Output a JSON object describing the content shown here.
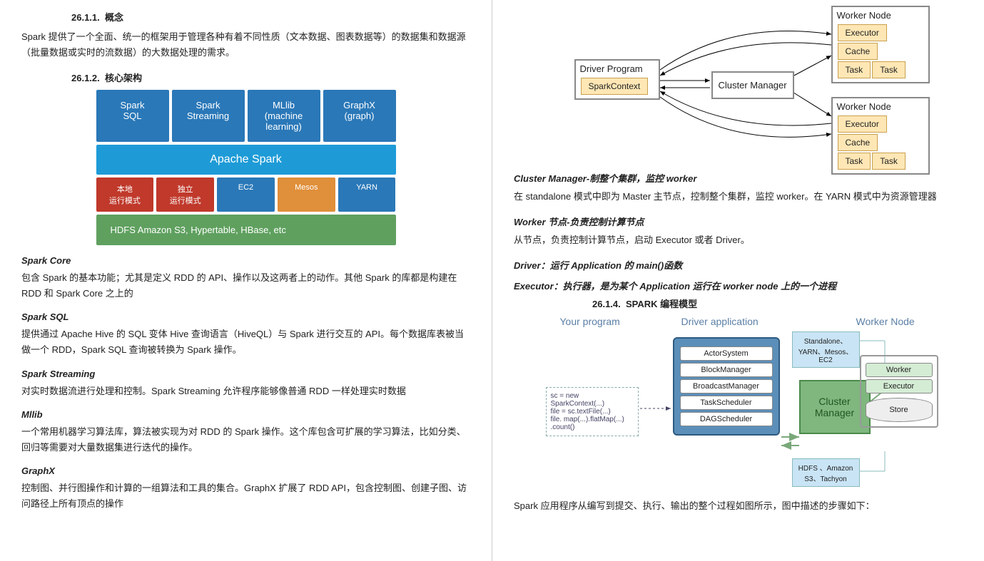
{
  "left": {
    "h1": {
      "num": "26.1.1.",
      "title": "概念"
    },
    "p1": "Spark 提供了一个全面、统一的框架用于管理各种有着不同性质（文本数据、图表数据等）的数据集和数据源（批量数据或实时的流数据）的大数据处理的需求。",
    "h2": {
      "num": "26.1.2.",
      "title": "核心架构"
    },
    "stack": {
      "row1": [
        {
          "l1": "Spark",
          "l2": "SQL",
          "bg": "#2a78b8"
        },
        {
          "l1": "Spark",
          "l2": "Streaming",
          "bg": "#2a78b8"
        },
        {
          "l1": "MLlib",
          "l2": "(machine",
          "l3": "learning)",
          "bg": "#2a78b8"
        },
        {
          "l1": "GraphX",
          "l2": "(graph)",
          "bg": "#2a78b8"
        }
      ],
      "row2": {
        "label": "Apache Spark",
        "bg": "#1e9bd7"
      },
      "row3": [
        {
          "label": "本地\n运行模式",
          "bg": "#c0392b"
        },
        {
          "label": "独立\n运行模式",
          "bg": "#c0392b"
        },
        {
          "label": "EC2",
          "bg": "#2a78b8"
        },
        {
          "label": "Mesos",
          "bg": "#e08f3a"
        },
        {
          "label": "YARN",
          "bg": "#2a78b8"
        }
      ],
      "row4": {
        "label": "HDFS     Amazon S3, Hypertable, HBase, etc",
        "bg": "#5fa05f"
      }
    },
    "secs": [
      {
        "t": "Spark Core",
        "p": "包含 Spark 的基本功能；尤其是定义 RDD 的 API、操作以及这两者上的动作。其他 Spark 的库都是构建在 RDD 和 Spark Core 之上的"
      },
      {
        "t": "Spark SQL",
        "p": "提供通过 Apache Hive 的 SQL 变体 Hive 查询语言（HiveQL）与 Spark 进行交互的 API。每个数据库表被当做一个 RDD，Spark SQL 查询被转换为 Spark 操作。"
      },
      {
        "t": "Spark Streaming",
        "p": "对实时数据流进行处理和控制。Spark Streaming 允许程序能够像普通 RDD 一样处理实时数据"
      },
      {
        "t": "Mllib",
        "p": "一个常用机器学习算法库，算法被实现为对 RDD 的 Spark 操作。这个库包含可扩展的学习算法，比如分类、回归等需要对大量数据集进行迭代的操作。"
      },
      {
        "t": "GraphX",
        "p": "控制图、并行图操作和计算的一组算法和工具的集合。GraphX 扩展了 RDD API，包含控制图、创建子图、访问路径上所有顶点的操作"
      }
    ]
  },
  "right": {
    "cluster": {
      "driver": {
        "title": "Driver Program",
        "inner": "SparkContext"
      },
      "cm": "Cluster Manager",
      "worker": {
        "title": "Worker Node",
        "exec": "Executor",
        "cache": "Cache",
        "task": "Task"
      }
    },
    "texts": [
      {
        "t": "Cluster Manager-制整个集群，监控 worker",
        "p": "在 standalone 模式中即为 Master 主节点，控制整个集群，监控 worker。在 YARN 模式中为资源管理器"
      },
      {
        "t": "Worker 节点-负责控制计算节点",
        "p": "从节点，负责控制计算节点，启动 Executor 或者 Driver。"
      },
      {
        "t": "Driver：运行 Application 的 main()函数",
        "p": ""
      },
      {
        "t": "Executor：执行器，是为某个 Application 运行在 worker node 上的一个进程",
        "p": ""
      }
    ],
    "h3": {
      "num": "26.1.4.",
      "title": "SPARK 编程模型"
    },
    "prog": {
      "labels": {
        "yp": "Your program",
        "da": "Driver application",
        "wn": "Worker Node"
      },
      "code": "sc = new SparkContext(...)\nfile = sc.textFile(...)\nfile. map(...).flatMap(...)\n .count()",
      "driver": [
        "ActorSystem",
        "BlockManager",
        "BroadcastManager",
        "TaskScheduler",
        "DAGScheduler"
      ],
      "cmLabelTop": "Standalone、\nYARN、Mesos、\nEC2",
      "cm": "Cluster\nManager",
      "cmLabelBot": "HDFS 、Amazon\nS3、Tachyon",
      "wn": [
        "Worker",
        "Executor"
      ],
      "store": "Store"
    },
    "last": "Spark 应用程序从编写到提交、执行、输出的整个过程如图所示，图中描述的步骤如下："
  }
}
